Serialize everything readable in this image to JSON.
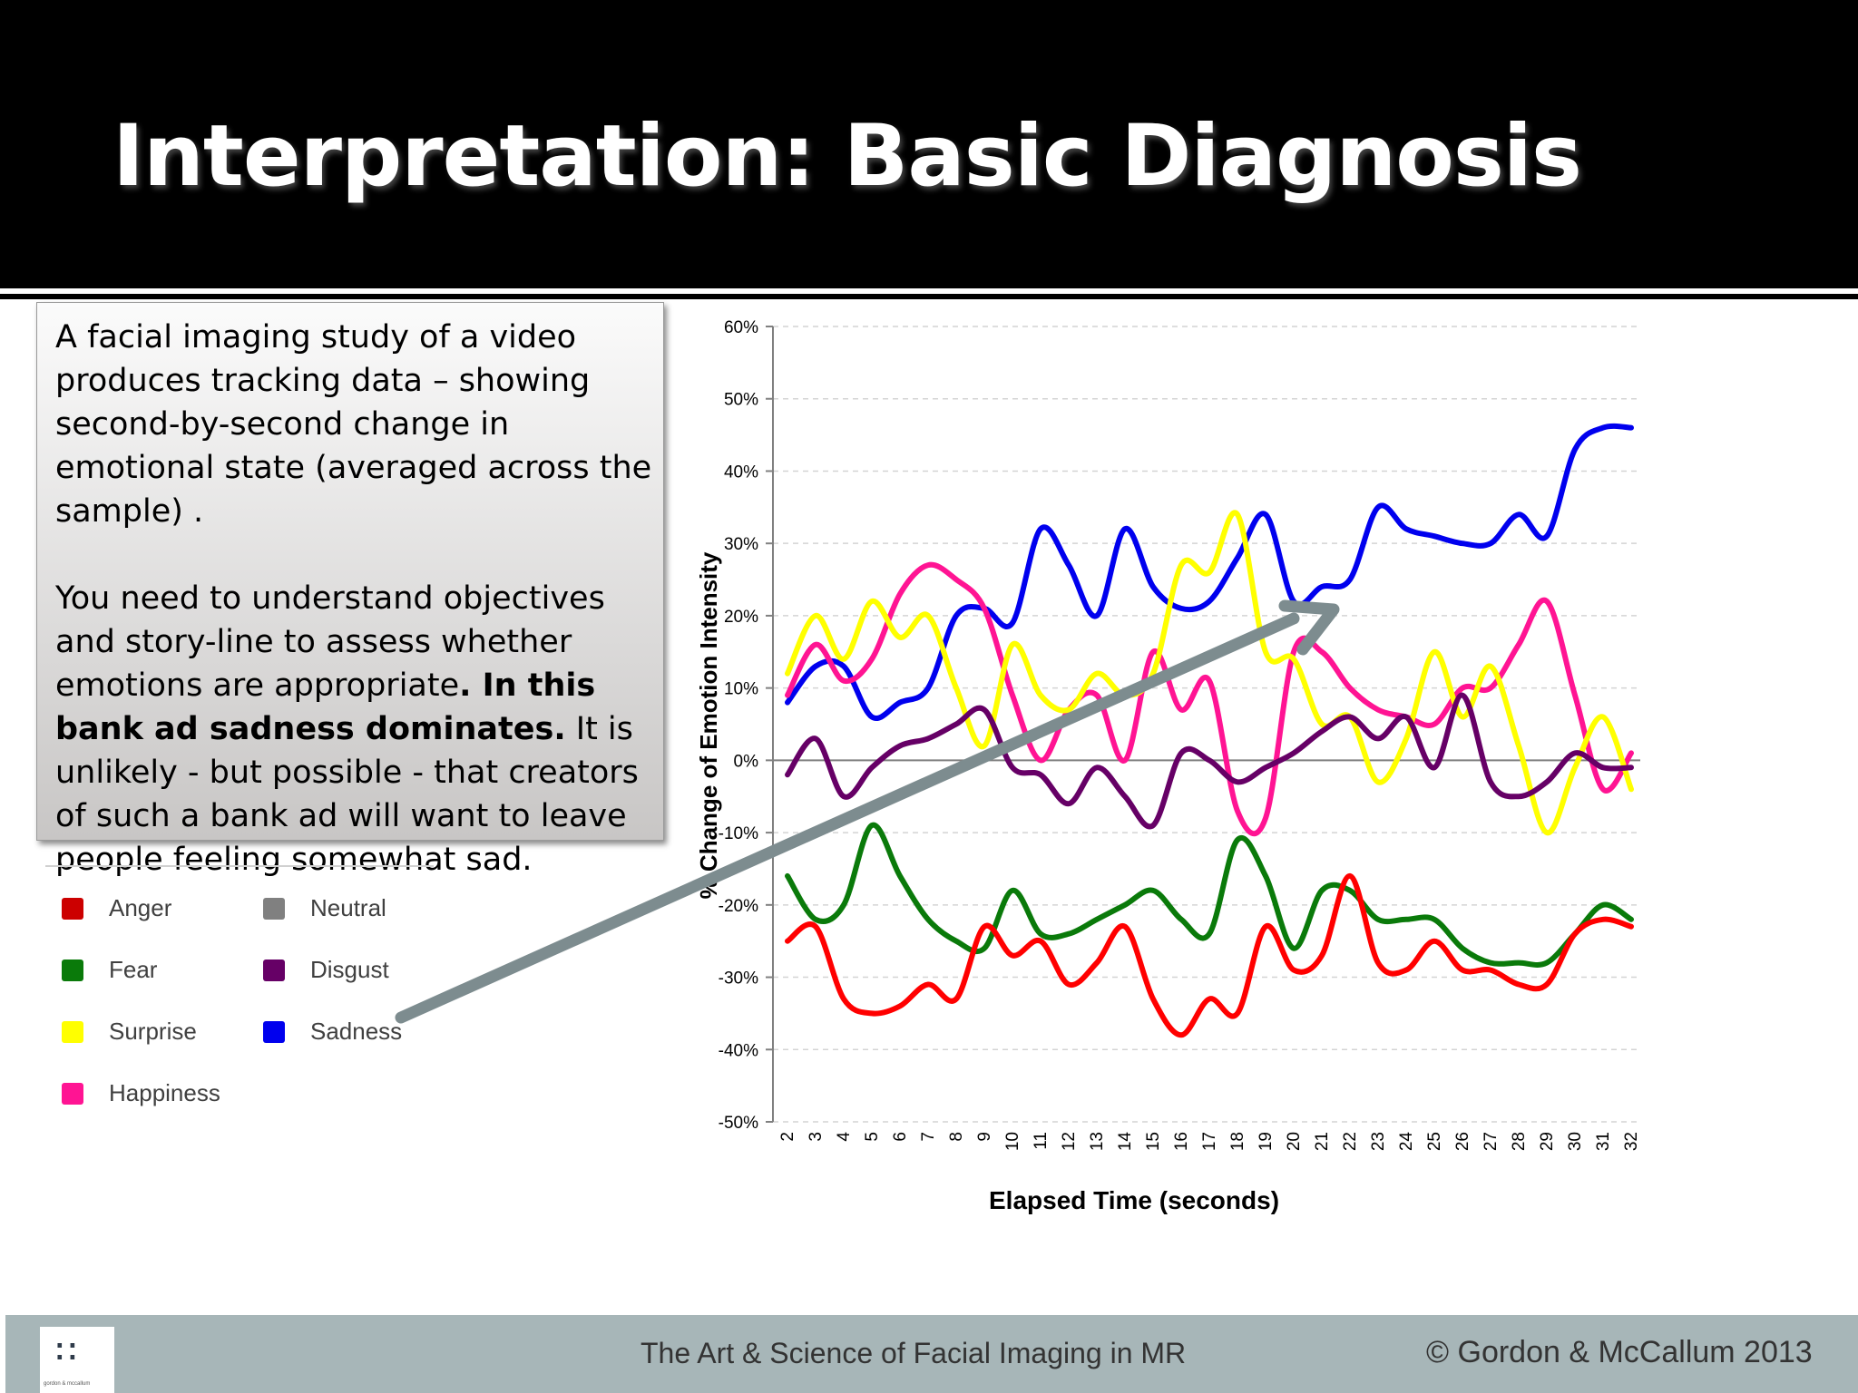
{
  "slide": {
    "title": "Interpretation: Basic Diagnosis",
    "body_para1": "A facial imaging study of a video produces tracking data – showing second-by-second change in emotional state (averaged across the sample) .",
    "body_para2_a": "You need to understand objectives and story-line to assess whether emotions are appropriate",
    "body_para2_b": ". In this bank ad sadness dominates.",
    "body_para2_c": "  It is unlikely - but possible - that creators of such a bank ad will want to leave people feeling somewhat sad."
  },
  "footer": {
    "center_text": "The Art & Science of Facial Imaging in MR",
    "right_text": "© Gordon & McCallum 2013",
    "logo_text": "gordon & mccallum"
  },
  "legend": [
    {
      "label": "Anger",
      "color": "#cc0000"
    },
    {
      "label": "Neutral",
      "color": "#808080"
    },
    {
      "label": "Fear",
      "color": "#0a7a0a"
    },
    {
      "label": "Disgust",
      "color": "#660066"
    },
    {
      "label": "Surprise",
      "color": "#ffff00"
    },
    {
      "label": "Sadness",
      "color": "#0000ee"
    },
    {
      "label": "Happiness",
      "color": "#ff1493"
    }
  ],
  "chart_data": {
    "type": "line",
    "xlabel": "Elapsed Time (seconds)",
    "ylabel": "% Change of Emotion Intensity",
    "ylim": [
      -50,
      60
    ],
    "ytick_labels": [
      "60%",
      "50%",
      "40%",
      "30%",
      "20%",
      "10%",
      "0%",
      "-10%",
      "-20%",
      "-30%",
      "-40%",
      "-50%"
    ],
    "ytick_values": [
      60,
      50,
      40,
      30,
      20,
      10,
      0,
      -10,
      -20,
      -30,
      -40,
      -50
    ],
    "x": [
      2,
      3,
      4,
      5,
      6,
      7,
      8,
      9,
      10,
      11,
      12,
      13,
      14,
      15,
      16,
      17,
      18,
      19,
      20,
      21,
      22,
      23,
      24,
      25,
      26,
      27,
      28,
      29,
      30,
      31,
      32
    ],
    "series": [
      {
        "name": "Sadness",
        "color": "#0000ee",
        "values": [
          8,
          13,
          13,
          6,
          8,
          10,
          20,
          21,
          19,
          32,
          27,
          20,
          32,
          24,
          21,
          22,
          28,
          34,
          22,
          24,
          25,
          35,
          32,
          31,
          30,
          30,
          34,
          31,
          43,
          46,
          46
        ]
      },
      {
        "name": "Happiness",
        "color": "#ff1493",
        "values": [
          9,
          16,
          11,
          14,
          23,
          27,
          25,
          21,
          9,
          0,
          7,
          9,
          0,
          15,
          7,
          11,
          -7,
          -8,
          15,
          15,
          10,
          7,
          6,
          5,
          10,
          10,
          16,
          22,
          9,
          -4,
          1
        ]
      },
      {
        "name": "Surprise",
        "color": "#ffff00",
        "values": [
          12,
          20,
          14,
          22,
          17,
          20,
          10,
          2,
          16,
          9,
          7,
          12,
          9,
          12,
          27,
          26,
          34,
          15,
          14,
          5,
          6,
          -3,
          3,
          15,
          6,
          13,
          2,
          -10,
          -1,
          6,
          -4
        ]
      },
      {
        "name": "Disgust",
        "color": "#660066",
        "values": [
          -2,
          3,
          -5,
          -1,
          2,
          3,
          5,
          7,
          -1,
          -2,
          -6,
          -1,
          -5,
          -9,
          1,
          0,
          -3,
          -1,
          1,
          4,
          6,
          3,
          6,
          -1,
          9,
          -3,
          -5,
          -3,
          1,
          -1,
          -1
        ]
      },
      {
        "name": "Fear",
        "color": "#0a7a0a",
        "values": [
          -16,
          -22,
          -20,
          -9,
          -16,
          -22,
          -25,
          -26,
          -18,
          -24,
          -24,
          -22,
          -20,
          -18,
          -22,
          -24,
          -11,
          -16,
          -26,
          -18,
          -18,
          -22,
          -22,
          -22,
          -26,
          -28,
          -28,
          -28,
          -24,
          -20,
          -22
        ]
      },
      {
        "name": "Anger",
        "color": "#ff0000",
        "values": [
          -25,
          -23,
          -33,
          -35,
          -34,
          -31,
          -33,
          -23,
          -27,
          -25,
          -31,
          -28,
          -23,
          -33,
          -38,
          -33,
          -35,
          -23,
          -29,
          -27,
          -16,
          -28,
          -29,
          -25,
          -29,
          -29,
          -31,
          -31,
          -24,
          -22,
          -23
        ]
      }
    ]
  }
}
